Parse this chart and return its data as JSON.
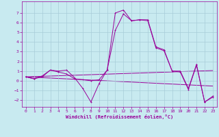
{
  "xlabel": "Windchill (Refroidissement éolien,°C)",
  "bg_color": "#c8eaf0",
  "grid_color": "#a8ccd8",
  "line_color": "#990099",
  "xlim": [
    -0.5,
    23.5
  ],
  "ylim": [
    -2.7,
    8.2
  ],
  "xticks": [
    0,
    1,
    2,
    3,
    4,
    5,
    6,
    7,
    8,
    9,
    10,
    11,
    12,
    13,
    14,
    15,
    16,
    17,
    18,
    19,
    20,
    21,
    22,
    23
  ],
  "yticks": [
    -2,
    -1,
    0,
    1,
    2,
    3,
    4,
    5,
    6,
    7
  ],
  "line1_x": [
    0,
    1,
    2,
    3,
    4,
    5,
    6,
    7,
    8,
    9,
    10,
    11,
    12,
    13,
    14,
    15,
    16,
    17,
    18,
    19,
    20,
    21,
    22,
    23
  ],
  "line1_y": [
    0.4,
    0.2,
    0.4,
    1.1,
    1.0,
    1.1,
    0.3,
    -0.8,
    -2.2,
    -0.3,
    1.1,
    7.0,
    7.3,
    6.2,
    6.3,
    6.3,
    3.5,
    3.2,
    1.0,
    1.0,
    -0.8,
    1.7,
    -2.2,
    -1.7
  ],
  "line2_x": [
    0,
    1,
    2,
    3,
    4,
    5,
    6,
    7,
    8,
    9,
    10,
    11,
    12,
    13,
    14,
    15,
    16,
    17,
    18,
    19,
    20,
    21,
    22,
    23
  ],
  "line2_y": [
    0.4,
    0.2,
    0.5,
    1.1,
    0.9,
    0.7,
    0.2,
    0.1,
    0.0,
    0.1,
    1.1,
    5.2,
    6.9,
    6.2,
    6.3,
    6.2,
    3.4,
    3.1,
    1.0,
    0.9,
    -0.9,
    1.6,
    -2.2,
    -1.6
  ],
  "line3_x": [
    0,
    23
  ],
  "line3_y": [
    0.4,
    -0.55
  ],
  "line4_x": [
    0,
    23
  ],
  "line4_y": [
    0.4,
    1.05
  ]
}
